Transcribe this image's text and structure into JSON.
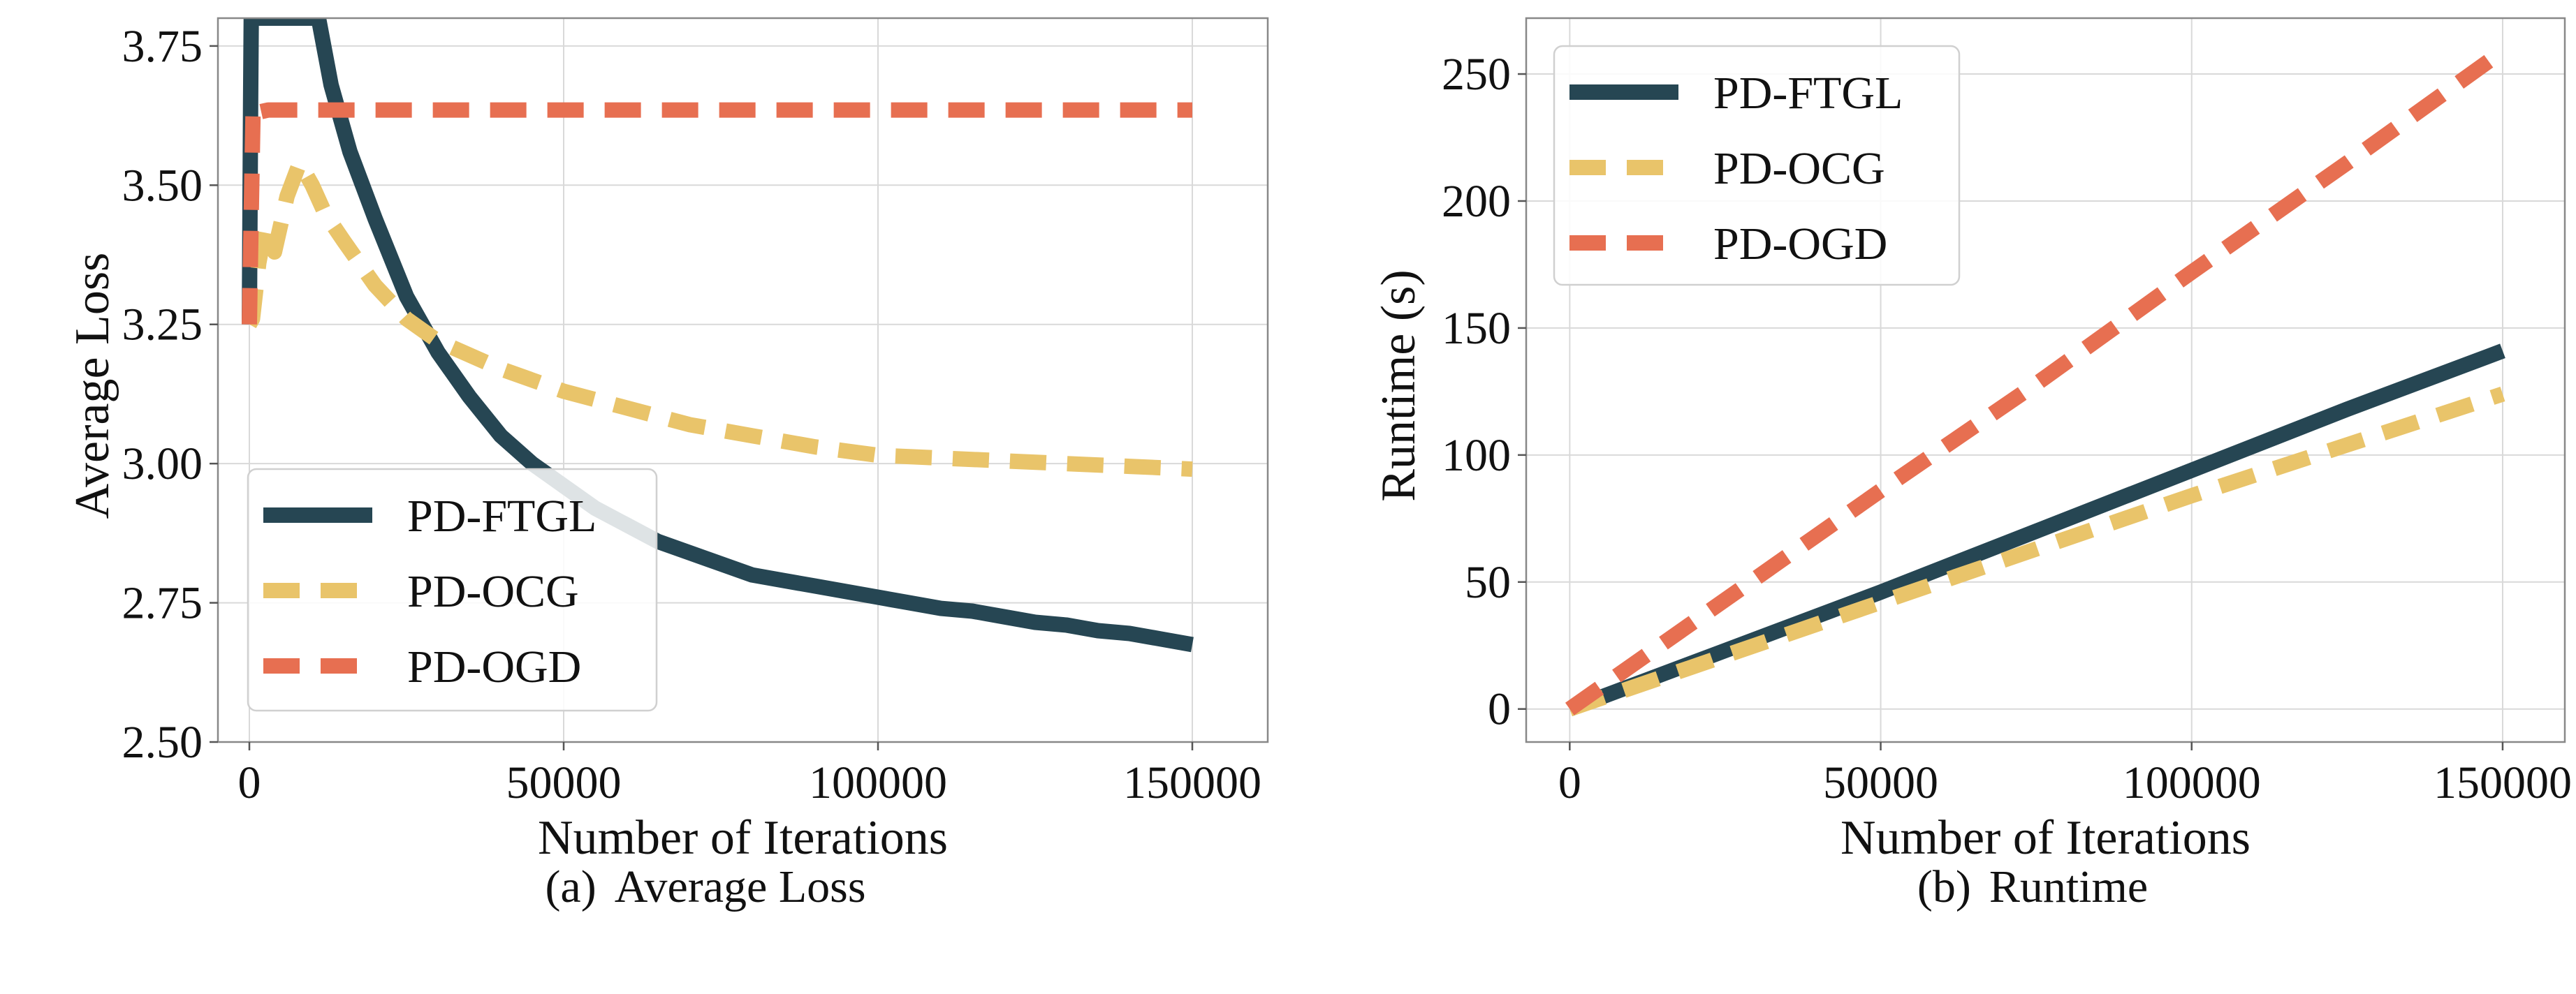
{
  "chart_data": [
    {
      "id": "loss",
      "type": "line",
      "caption_label": "(a)",
      "caption_title": "Average Loss",
      "xlabel": "Number of Iterations",
      "ylabel": "Average Loss",
      "xlim": [
        -5000,
        162000
      ],
      "ylim": [
        2.5,
        3.8
      ],
      "xticks": [
        0,
        50000,
        100000,
        150000
      ],
      "xtick_labels": [
        "0",
        "50000",
        "100000",
        "150000"
      ],
      "yticks": [
        2.5,
        2.75,
        3.0,
        3.25,
        3.5,
        3.75
      ],
      "ytick_labels": [
        "2.50",
        "2.75",
        "3.00",
        "3.25",
        "3.50",
        "3.75"
      ],
      "legend_position": "lower-left",
      "series": [
        {
          "name": "PD-FTGL",
          "color": "#264653",
          "dash": "solid",
          "x": [
            0,
            100,
            200,
            300,
            400,
            11000,
            13000,
            16000,
            20000,
            25000,
            30000,
            35000,
            40000,
            45000,
            50000,
            55000,
            60000,
            65000,
            70000,
            75000,
            80000,
            85000,
            90000,
            95000,
            100000,
            105000,
            110000,
            115000,
            120000,
            125000,
            130000,
            135000,
            140000,
            145000,
            150000
          ],
          "y": [
            3.25,
            3.45,
            3.65,
            3.8,
            3.8,
            3.8,
            3.68,
            3.56,
            3.44,
            3.3,
            3.2,
            3.12,
            3.05,
            3.0,
            2.96,
            2.92,
            2.89,
            2.86,
            2.84,
            2.82,
            2.8,
            2.79,
            2.78,
            2.77,
            2.76,
            2.75,
            2.74,
            2.735,
            2.725,
            2.715,
            2.71,
            2.7,
            2.695,
            2.685,
            2.675
          ]
        },
        {
          "name": "PD-OCG",
          "color": "#e9c46a",
          "dash": "dashed",
          "x": [
            0,
            500,
            1500,
            2500,
            4000,
            6000,
            8000,
            10000,
            12000,
            15000,
            20000,
            25000,
            30000,
            40000,
            50000,
            60000,
            70000,
            80000,
            90000,
            100000,
            110000,
            120000,
            130000,
            140000,
            150000
          ],
          "y": [
            3.25,
            3.26,
            3.36,
            3.42,
            3.38,
            3.48,
            3.54,
            3.5,
            3.45,
            3.4,
            3.32,
            3.26,
            3.22,
            3.17,
            3.13,
            3.1,
            3.07,
            3.05,
            3.03,
            3.015,
            3.01,
            3.005,
            3.0,
            2.995,
            2.99
          ]
        },
        {
          "name": "PD-OGD",
          "color": "#e76f51",
          "dash": "dashed",
          "x": [
            0,
            300,
            600,
            1000,
            3000,
            10000,
            50000,
            100000,
            150000
          ],
          "y": [
            3.25,
            3.45,
            3.64,
            3.63,
            3.635,
            3.635,
            3.635,
            3.635,
            3.635
          ]
        }
      ]
    },
    {
      "id": "runtime",
      "type": "line",
      "caption_label": "(b)",
      "caption_title": "Runtime",
      "xlabel": "Number of Iterations",
      "ylabel": "Runtime (s)",
      "xlim": [
        -7000,
        160000
      ],
      "ylim": [
        -13,
        272
      ],
      "xticks": [
        0,
        50000,
        100000,
        150000
      ],
      "xtick_labels": [
        "0",
        "50000",
        "100000",
        "150000"
      ],
      "yticks": [
        0,
        50,
        100,
        150,
        200,
        250
      ],
      "ytick_labels": [
        "0",
        "50",
        "100",
        "150",
        "200",
        "250"
      ],
      "legend_position": "upper-left",
      "series": [
        {
          "name": "PD-FTGL",
          "color": "#264653",
          "dash": "solid",
          "x": [
            0,
            25000,
            50000,
            75000,
            100000,
            125000,
            150000
          ],
          "y": [
            0,
            23,
            46,
            70,
            94,
            118,
            141
          ]
        },
        {
          "name": "PD-OCG",
          "color": "#e9c46a",
          "dash": "dashed",
          "x": [
            0,
            25000,
            50000,
            75000,
            100000,
            125000,
            150000
          ],
          "y": [
            0,
            21,
            42,
            63,
            84,
            104,
            124
          ]
        },
        {
          "name": "PD-OGD",
          "color": "#e76f51",
          "dash": "dashed",
          "x": [
            0,
            25000,
            50000,
            75000,
            100000,
            125000,
            150000
          ],
          "y": [
            0,
            43,
            86,
            128,
            172,
            215,
            259
          ]
        }
      ]
    }
  ]
}
